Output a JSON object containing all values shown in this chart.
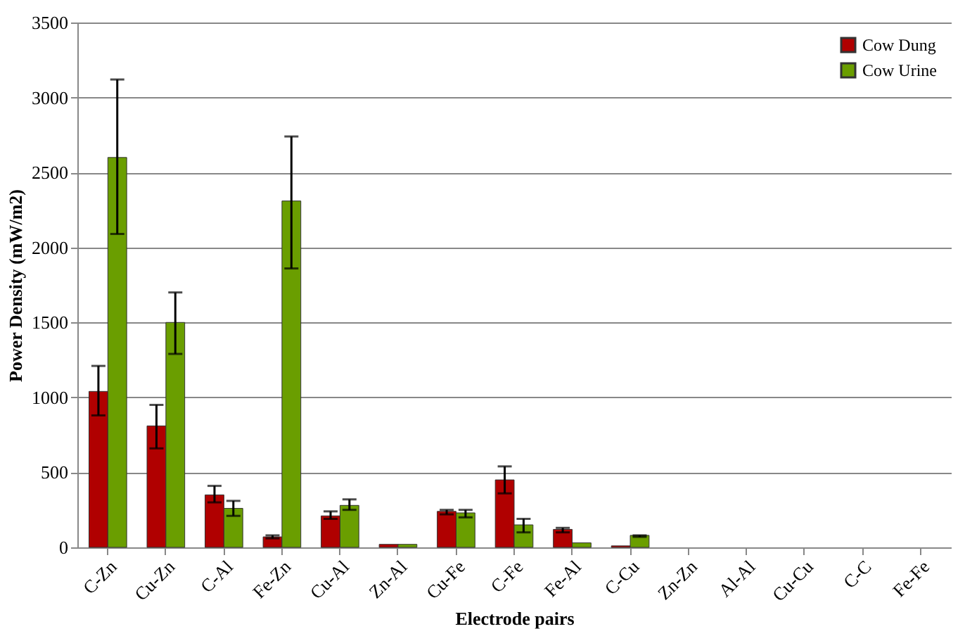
{
  "chart_data": {
    "type": "bar",
    "xlabel": "Electrode pairs",
    "ylabel": "Power Density (mW/m2)",
    "categories": [
      "C-Zn",
      "Cu-Zn",
      "C-Al",
      "Fe-Zn",
      "Cu-Al",
      "Zn-Al",
      "Cu-Fe",
      "C-Fe",
      "Fe-Al",
      "C-Cu",
      "Zn-Zn",
      "Al-Al",
      "Cu-Cu",
      "C-C",
      "Fe-Fe"
    ],
    "series": [
      {
        "name": "Cow Dung",
        "color": "#b00000",
        "values": [
          1040,
          810,
          350,
          70,
          210,
          20,
          240,
          450,
          120,
          10,
          0,
          0,
          0,
          0,
          0
        ],
        "errors": [
          [
            880,
            1210
          ],
          [
            660,
            950
          ],
          [
            300,
            410
          ],
          [
            60,
            80
          ],
          [
            190,
            240
          ],
          null,
          [
            220,
            250
          ],
          [
            360,
            540
          ],
          [
            100,
            130
          ],
          null,
          null,
          null,
          null,
          null,
          null
        ]
      },
      {
        "name": "Cow Urine",
        "color": "#6a9e00",
        "values": [
          2600,
          1500,
          260,
          2310,
          280,
          20,
          230,
          150,
          30,
          80,
          0,
          0,
          0,
          0,
          0
        ],
        "errors": [
          [
            2090,
            3120
          ],
          [
            1290,
            1700
          ],
          [
            210,
            310
          ],
          [
            1860,
            2740
          ],
          [
            250,
            320
          ],
          null,
          [
            200,
            250
          ],
          [
            100,
            190
          ],
          null,
          [
            70,
            80
          ],
          null,
          null,
          null,
          null,
          null
        ]
      }
    ],
    "ylim": [
      0,
      3500
    ],
    "yticks": [
      0,
      500,
      1000,
      1500,
      2000,
      2500,
      3000,
      3500
    ],
    "grid": "y",
    "legend": "top right"
  }
}
